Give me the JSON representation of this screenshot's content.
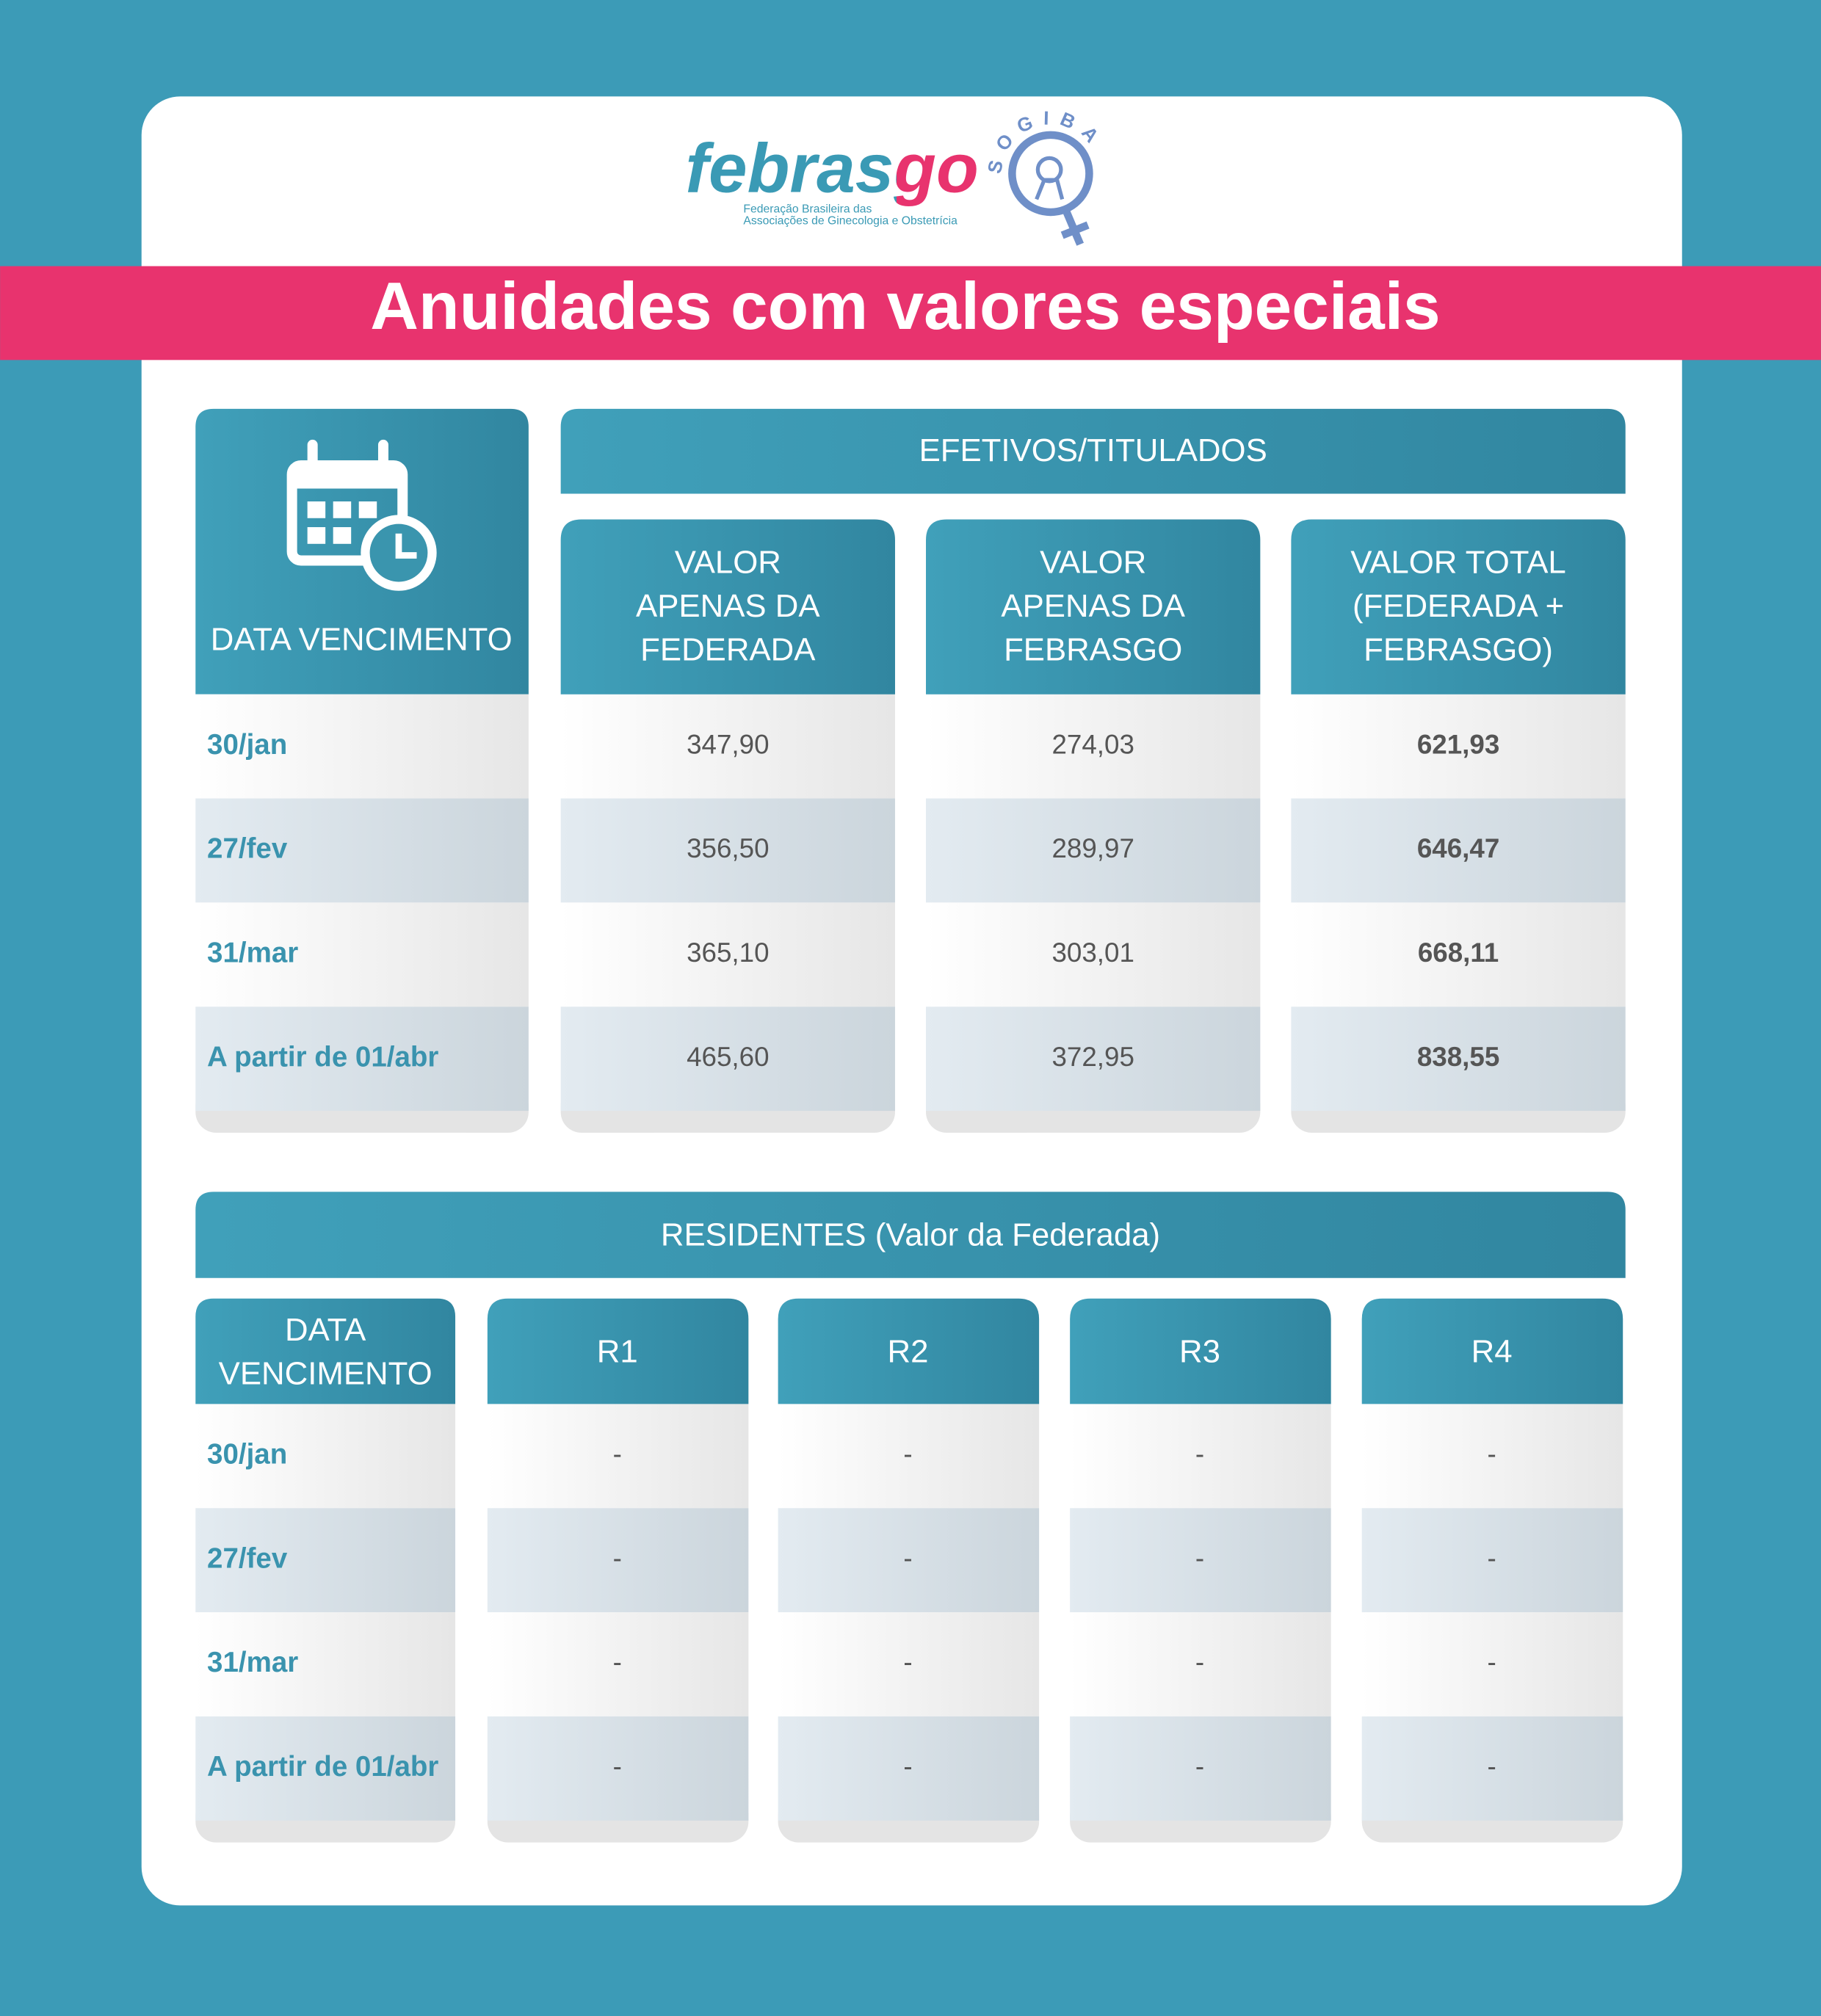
{
  "logos": {
    "febrasgo": {
      "name": "febrasgo",
      "subtitle": [
        "Federação Brasileira das",
        "Associações de Ginecologia e Obstetrícia"
      ]
    },
    "sogiba": "SOGIBA"
  },
  "title": "Anuidades com valores especiais",
  "table_efetivos": {
    "group_header": "EFETIVOS/TITULADOS",
    "date_header": "DATA VENCIMENTO",
    "columns": [
      [
        "VALOR",
        "APENAS DA",
        "FEDERADA"
      ],
      [
        "VALOR",
        "APENAS DA",
        "FEBRASGO"
      ],
      [
        "VALOR TOTAL",
        "(FEDERADA +",
        "FEBRASGO)"
      ]
    ],
    "rows": [
      [
        "30/jan",
        "347,90",
        "274,03",
        "621,93"
      ],
      [
        "27/fev",
        "356,50",
        "289,97",
        "646,47"
      ],
      [
        "31/mar",
        "365,10",
        "303,01",
        "668,11"
      ],
      [
        "A partir de 01/abr",
        "465,60",
        "372,95",
        "838,55"
      ]
    ]
  },
  "table_residentes": {
    "group_header": "RESIDENTES (Valor da Federada)",
    "date_header": [
      "DATA",
      "VENCIMENTO"
    ],
    "columns": [
      "R1",
      "R2",
      "R3",
      "R4"
    ],
    "rows": [
      [
        "30/jan",
        "-",
        "-",
        "-",
        "-"
      ],
      [
        "27/fev",
        "-",
        "-",
        "-",
        "-"
      ],
      [
        "31/mar",
        "-",
        "-",
        "-",
        "-"
      ],
      [
        "A partir de 01/abr",
        "-",
        "-",
        "-",
        "-"
      ]
    ]
  }
}
